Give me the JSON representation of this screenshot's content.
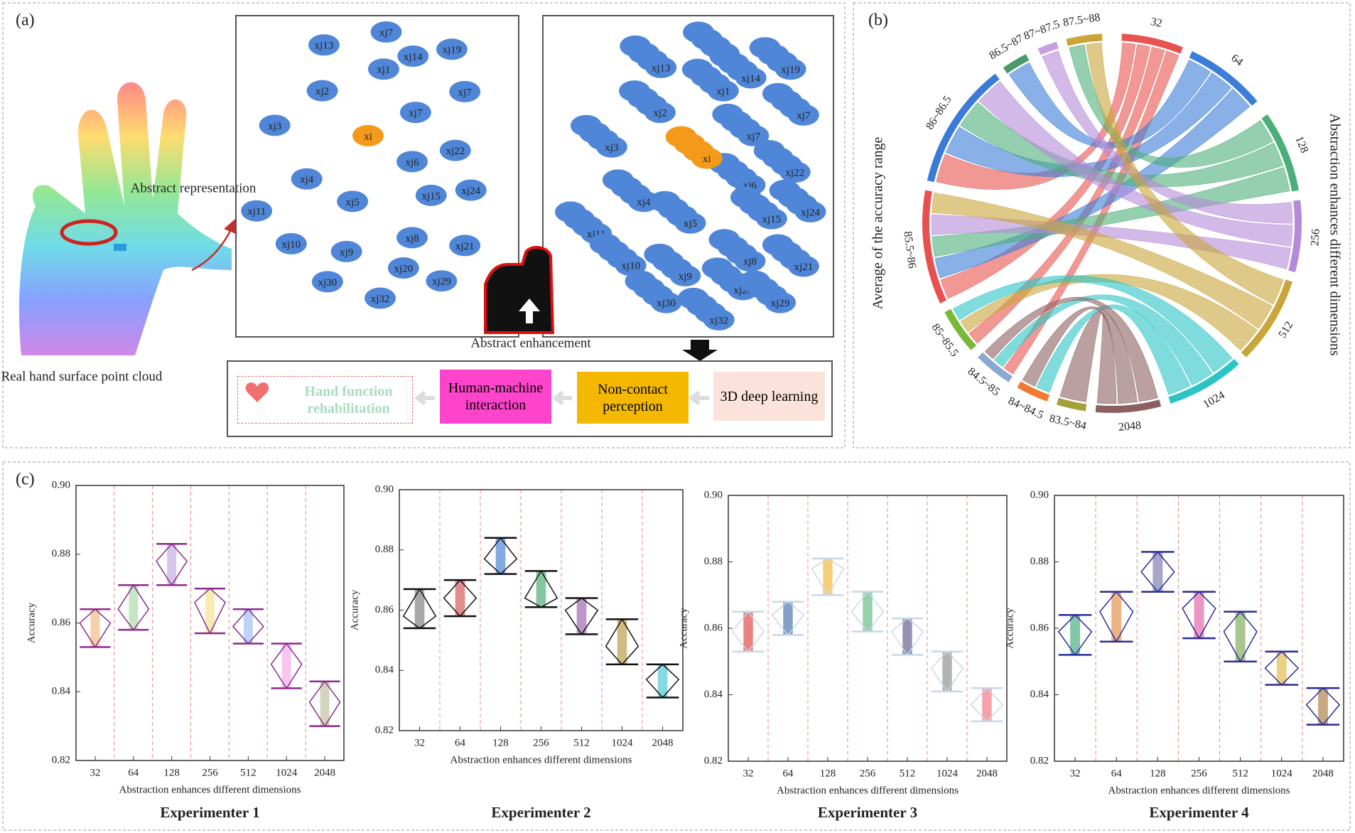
{
  "panel_labels": [
    "(a)",
    "(b)",
    "(c)"
  ],
  "panel_a": {
    "abstract_representation": "Abstract representation",
    "hand_caption": "Real hand surface point cloud",
    "abstract_enhancement": "Abstract enhancement",
    "center_node": "xi",
    "nodes": [
      "xj13",
      "xj7",
      "xj14",
      "xj19",
      "xj1",
      "xj2",
      "xj7",
      "xj7",
      "xj3",
      "xj22",
      "xj6",
      "xj4",
      "xj24",
      "xj5",
      "xj15",
      "xj11",
      "xj10",
      "xj8",
      "xj21",
      "xj9",
      "xj20",
      "xj29",
      "xj30",
      "xj32"
    ],
    "pipeline": [
      "Hand function rehabilitation",
      "Human-machine interaction",
      "Non-contact perception",
      "3D deep learning"
    ]
  },
  "panel_b": {
    "type": "chord",
    "left_title": "Average of the accuracy range",
    "right_title": "Abstraction enhances different dimensions",
    "dimensions": [
      "32",
      "64",
      "128",
      "256",
      "512",
      "1024",
      "2048"
    ],
    "dimension_colors": [
      "#e8534f",
      "#3b7dd8",
      "#4caf7a",
      "#b58ad8",
      "#c9a53a",
      "#2bc4c4",
      "#8c6060"
    ],
    "ranges": [
      "83.5~84",
      "84~84.5",
      "84.5~85",
      "85~85.5",
      "85.5~86",
      "86~86.5",
      "86.5~87",
      "87~87.5",
      "87.5~88"
    ],
    "range_colors": [
      "#a3a03a",
      "#f07a30",
      "#8aa8d0",
      "#7ab83a",
      "#e85050",
      "#3a7ad8",
      "#4a9a6a",
      "#c7a0e0",
      "#c9a53a"
    ]
  },
  "chart_data": [
    {
      "type": "diamond",
      "title": "Experimenter 1",
      "xlabel": "Abstraction enhances different dimensions",
      "ylabel": "Accuracy",
      "categories": [
        "32",
        "64",
        "128",
        "256",
        "512",
        "1024",
        "2048"
      ],
      "mean": [
        0.86,
        0.864,
        0.878,
        0.866,
        0.859,
        0.848,
        0.837
      ],
      "upper": [
        0.864,
        0.871,
        0.883,
        0.87,
        0.864,
        0.854,
        0.843
      ],
      "lower": [
        0.853,
        0.858,
        0.871,
        0.857,
        0.854,
        0.841,
        0.83
      ],
      "colors": [
        "#f0b070",
        "#9ed49e",
        "#b8a0d8",
        "#f0e080",
        "#90b8f0",
        "#f0a0e8",
        "#b8b890"
      ],
      "diamond_color": "#8b2a8b",
      "ylim": [
        0.82,
        0.9
      ],
      "yticks": [
        0.82,
        0.84,
        0.86,
        0.88,
        {
          "value": 0.9,
          "label": "0.90"
        }
      ]
    },
    {
      "type": "diamond",
      "title": "Experimenter 2",
      "xlabel": "Abstraction enhances different dimensions",
      "ylabel": "Accuracy",
      "categories": [
        "32",
        "64",
        "128",
        "256",
        "512",
        "1024",
        "2048"
      ],
      "mean": [
        0.858,
        0.864,
        0.877,
        0.864,
        0.86,
        0.848,
        0.837
      ],
      "upper": [
        0.867,
        0.87,
        0.884,
        0.873,
        0.864,
        0.857,
        0.842
      ],
      "lower": [
        0.854,
        0.858,
        0.872,
        0.861,
        0.852,
        0.842,
        0.831
      ],
      "colors": [
        "#707070",
        "#d04040",
        "#3070d0",
        "#30a060",
        "#9050a0",
        "#b09030",
        "#30c0d0"
      ],
      "diamond_color": "#111111",
      "ylim": [
        0.82,
        0.9
      ],
      "yticks": [
        0.82,
        0.84,
        0.86,
        0.88,
        {
          "value": 0.9,
          "label": "0.90"
        }
      ]
    },
    {
      "type": "diamond",
      "title": "Experimenter 3",
      "xlabel": "Abstraction enhances different dimensions",
      "ylabel": "Accuracy",
      "categories": [
        "32",
        "64",
        "128",
        "256",
        "512",
        "1024",
        "2048"
      ],
      "mean": [
        0.859,
        0.864,
        0.878,
        0.865,
        0.859,
        0.848,
        0.837
      ],
      "upper": [
        0.865,
        0.868,
        0.881,
        0.871,
        0.863,
        0.853,
        0.842
      ],
      "lower": [
        0.853,
        0.858,
        0.87,
        0.859,
        0.852,
        0.841,
        0.832
      ],
      "colors": [
        "#e03030",
        "#3060a0",
        "#f0b020",
        "#50b070",
        "#504880",
        "#808080",
        "#f06070"
      ],
      "diamond_color": "#c7d8e8",
      "ylim": [
        0.82,
        0.9
      ],
      "yticks": [
        0.82,
        0.84,
        0.86,
        0.88,
        {
          "value": 0.9,
          "label": "0.90"
        }
      ]
    },
    {
      "type": "diamond",
      "title": "Experimenter 4",
      "xlabel": "Abstraction enhances different dimensions",
      "ylabel": "Accuracy",
      "categories": [
        "32",
        "64",
        "128",
        "256",
        "512",
        "1024",
        "2048"
      ],
      "mean": [
        0.859,
        0.865,
        0.877,
        0.866,
        0.859,
        0.848,
        0.837
      ],
      "upper": [
        0.864,
        0.871,
        0.883,
        0.871,
        0.865,
        0.853,
        0.842
      ],
      "lower": [
        0.852,
        0.856,
        0.871,
        0.857,
        0.85,
        0.843,
        0.831
      ],
      "colors": [
        "#30a070",
        "#e08030",
        "#6a6aa0",
        "#e050a0",
        "#70a040",
        "#e0b030",
        "#a07030"
      ],
      "diamond_color": "#2a2a9a",
      "ylim": [
        0.82,
        0.9
      ],
      "yticks": [
        0.82,
        0.84,
        0.86,
        0.88,
        {
          "value": 0.9,
          "label": "0.90"
        }
      ]
    }
  ]
}
